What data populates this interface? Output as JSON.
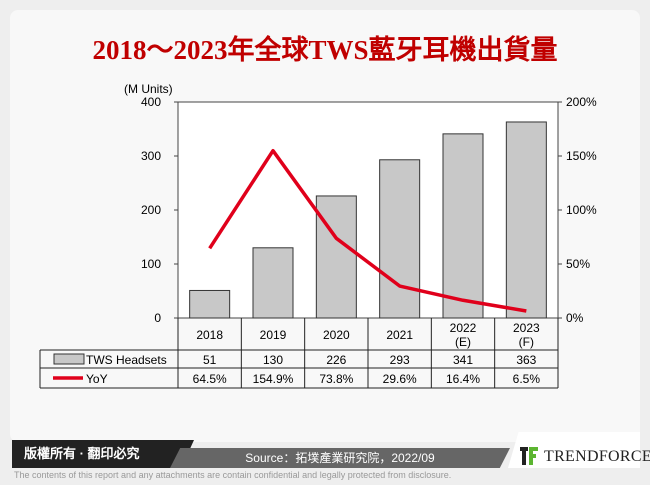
{
  "title": "2018～2023年全球TWS藍牙耳機出貨量",
  "chart_data": {
    "type": "bar+line",
    "categories": [
      "2018",
      "2019",
      "2020",
      "2021",
      "2022\n(E)",
      "2023\n(F)"
    ],
    "y_left": {
      "label": "(M Units)",
      "range": [
        0,
        400
      ],
      "ticks": [
        "0",
        "100",
        "200",
        "300",
        "400"
      ]
    },
    "y_right": {
      "range": [
        0,
        200
      ],
      "ticks": [
        "0%",
        "50%",
        "100%",
        "150%",
        "200%"
      ]
    },
    "series": [
      {
        "name": "TWS Headsets",
        "type": "bar",
        "color": "#c8c8c8",
        "values": [
          51,
          130,
          226,
          293,
          341,
          363
        ],
        "labels": [
          "51",
          "130",
          "226",
          "293",
          "341",
          "363"
        ]
      },
      {
        "name": "YoY",
        "type": "line",
        "color": "#e0001b",
        "values": [
          64.5,
          154.9,
          73.8,
          29.6,
          16.4,
          6.5
        ],
        "labels": [
          "64.5%",
          "154.9%",
          "73.8%",
          "29.6%",
          "16.4%",
          "6.5%"
        ]
      }
    ],
    "grid": false,
    "legend": "data-table"
  },
  "footer": {
    "copyright": "版權所有 · 翻印必究",
    "source": "Source：拓墣產業研究院，2022/09",
    "brand": "TRENDFORCE",
    "disclaimer": "The contents of this report and any attachments are contain confidential and legally protected from disclosure."
  }
}
